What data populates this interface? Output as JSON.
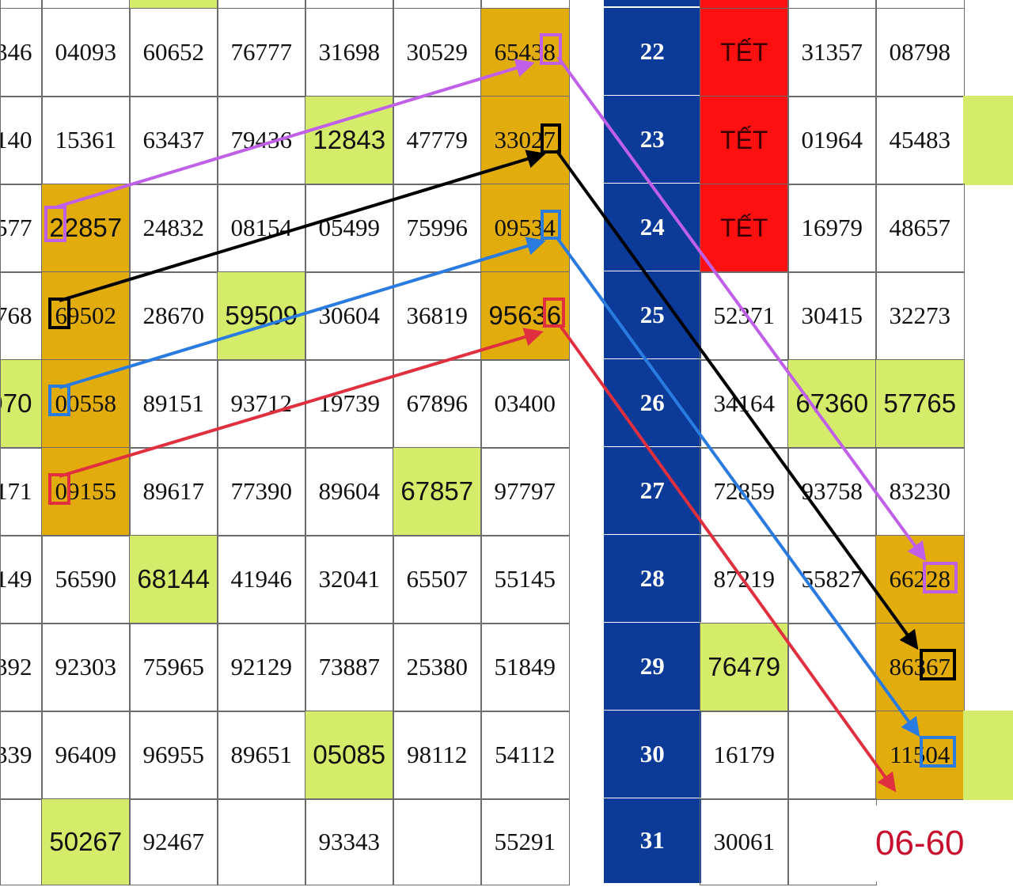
{
  "colors": {
    "green": "#d4ec6a",
    "orange": "#e2ac0c",
    "red": "#ff1010",
    "blue": "#0b3a99",
    "note": "#c8102e",
    "arrow_pink": "#c060e8",
    "arrow_black": "#000000",
    "arrow_blue": "#2a7be0",
    "arrow_red": "#e03040"
  },
  "left_table": {
    "top_partial": [
      "",
      "",
      "g",
      "",
      "",
      "",
      ""
    ],
    "rows": [
      [
        {
          "v": "346",
          "s": ""
        },
        {
          "v": "04093",
          "s": ""
        },
        {
          "v": "60652",
          "s": ""
        },
        {
          "v": "76777",
          "s": ""
        },
        {
          "v": "31698",
          "s": ""
        },
        {
          "v": "30529",
          "s": ""
        },
        {
          "v": "65438",
          "s": "o"
        }
      ],
      [
        {
          "v": "140",
          "s": ""
        },
        {
          "v": "15361",
          "s": ""
        },
        {
          "v": "63437",
          "s": ""
        },
        {
          "v": "79436",
          "s": ""
        },
        {
          "v": "12843",
          "s": "g"
        },
        {
          "v": "47779",
          "s": ""
        },
        {
          "v": "33027",
          "s": "o"
        }
      ],
      [
        {
          "v": "577",
          "s": ""
        },
        {
          "v": "22857",
          "s": "os"
        },
        {
          "v": "24832",
          "s": ""
        },
        {
          "v": "08154",
          "s": ""
        },
        {
          "v": "05499",
          "s": ""
        },
        {
          "v": "75996",
          "s": ""
        },
        {
          "v": "09534",
          "s": "o"
        }
      ],
      [
        {
          "v": "768",
          "s": ""
        },
        {
          "v": "69502",
          "s": "o"
        },
        {
          "v": "28670",
          "s": ""
        },
        {
          "v": "59509",
          "s": "g"
        },
        {
          "v": "30604",
          "s": ""
        },
        {
          "v": "36819",
          "s": ""
        },
        {
          "v": "95636",
          "s": "os"
        }
      ],
      [
        {
          "v": "970",
          "s": "g"
        },
        {
          "v": "00558",
          "s": "o"
        },
        {
          "v": "89151",
          "s": ""
        },
        {
          "v": "93712",
          "s": ""
        },
        {
          "v": "19739",
          "s": ""
        },
        {
          "v": "67896",
          "s": ""
        },
        {
          "v": "03400",
          "s": ""
        }
      ],
      [
        {
          "v": "171",
          "s": ""
        },
        {
          "v": "09155",
          "s": "o"
        },
        {
          "v": "89617",
          "s": ""
        },
        {
          "v": "77390",
          "s": ""
        },
        {
          "v": "89604",
          "s": ""
        },
        {
          "v": "67857",
          "s": "g"
        },
        {
          "v": "97797",
          "s": ""
        }
      ],
      [
        {
          "v": "149",
          "s": ""
        },
        {
          "v": "56590",
          "s": ""
        },
        {
          "v": "68144",
          "s": "g"
        },
        {
          "v": "41946",
          "s": ""
        },
        {
          "v": "32041",
          "s": ""
        },
        {
          "v": "65507",
          "s": ""
        },
        {
          "v": "55145",
          "s": ""
        }
      ],
      [
        {
          "v": "392",
          "s": ""
        },
        {
          "v": "92303",
          "s": ""
        },
        {
          "v": "75965",
          "s": ""
        },
        {
          "v": "92129",
          "s": ""
        },
        {
          "v": "73887",
          "s": ""
        },
        {
          "v": "25380",
          "s": ""
        },
        {
          "v": "51849",
          "s": ""
        }
      ],
      [
        {
          "v": "339",
          "s": ""
        },
        {
          "v": "96409",
          "s": ""
        },
        {
          "v": "96955",
          "s": ""
        },
        {
          "v": "89651",
          "s": ""
        },
        {
          "v": "05085",
          "s": "g"
        },
        {
          "v": "98112",
          "s": ""
        },
        {
          "v": "54112",
          "s": ""
        }
      ],
      [
        {
          "v": "",
          "s": ""
        },
        {
          "v": "50267",
          "s": "g"
        },
        {
          "v": "92467",
          "s": ""
        },
        {
          "v": "",
          "s": ""
        },
        {
          "v": "93343",
          "s": ""
        },
        {
          "v": "",
          "s": ""
        },
        {
          "v": "55291",
          "s": ""
        }
      ]
    ]
  },
  "right_table": {
    "top_partial": [
      "b",
      "r",
      "",
      ""
    ],
    "rows": [
      [
        {
          "v": "22",
          "s": "b"
        },
        {
          "v": "TẾT",
          "s": "r"
        },
        {
          "v": "31357",
          "s": ""
        },
        {
          "v": "08798",
          "s": ""
        },
        {
          "v": "",
          "s": "blank"
        }
      ],
      [
        {
          "v": "23",
          "s": "b"
        },
        {
          "v": "TẾT",
          "s": "r"
        },
        {
          "v": "01964",
          "s": ""
        },
        {
          "v": "45483",
          "s": ""
        },
        {
          "v": "",
          "s": "gx"
        }
      ],
      [
        {
          "v": "24",
          "s": "b"
        },
        {
          "v": "TẾT",
          "s": "r"
        },
        {
          "v": "16979",
          "s": ""
        },
        {
          "v": "48657",
          "s": ""
        },
        {
          "v": "",
          "s": "blank"
        }
      ],
      [
        {
          "v": "25",
          "s": "b"
        },
        {
          "v": "52371",
          "s": ""
        },
        {
          "v": "30415",
          "s": ""
        },
        {
          "v": "32273",
          "s": ""
        },
        {
          "v": "",
          "s": "blank"
        }
      ],
      [
        {
          "v": "26",
          "s": "b"
        },
        {
          "v": "34164",
          "s": ""
        },
        {
          "v": "67360",
          "s": "g"
        },
        {
          "v": "57765",
          "s": "g"
        },
        {
          "v": "",
          "s": "blank"
        }
      ],
      [
        {
          "v": "27",
          "s": "b"
        },
        {
          "v": "72859",
          "s": ""
        },
        {
          "v": "93758",
          "s": ""
        },
        {
          "v": "83230",
          "s": ""
        },
        {
          "v": "",
          "s": "blank"
        }
      ],
      [
        {
          "v": "28",
          "s": "b"
        },
        {
          "v": "87219",
          "s": ""
        },
        {
          "v": "55827",
          "s": ""
        },
        {
          "v": "66228",
          "s": "o"
        },
        {
          "v": "",
          "s": "blank"
        }
      ],
      [
        {
          "v": "29",
          "s": "b"
        },
        {
          "v": "76479",
          "s": "g"
        },
        {
          "v": "",
          "s": ""
        },
        {
          "v": "86367",
          "s": "o"
        },
        {
          "v": "",
          "s": "blank"
        }
      ],
      [
        {
          "v": "30",
          "s": "b"
        },
        {
          "v": "16179",
          "s": ""
        },
        {
          "v": "",
          "s": ""
        },
        {
          "v": "11504",
          "s": "o"
        },
        {
          "v": "",
          "s": "gx"
        }
      ],
      [
        {
          "v": "31",
          "s": "b"
        },
        {
          "v": "30061",
          "s": ""
        },
        {
          "v": "",
          "s": ""
        },
        {
          "v": "06-60",
          "s": "note"
        },
        {
          "v": "",
          "s": "blank"
        }
      ]
    ]
  }
}
